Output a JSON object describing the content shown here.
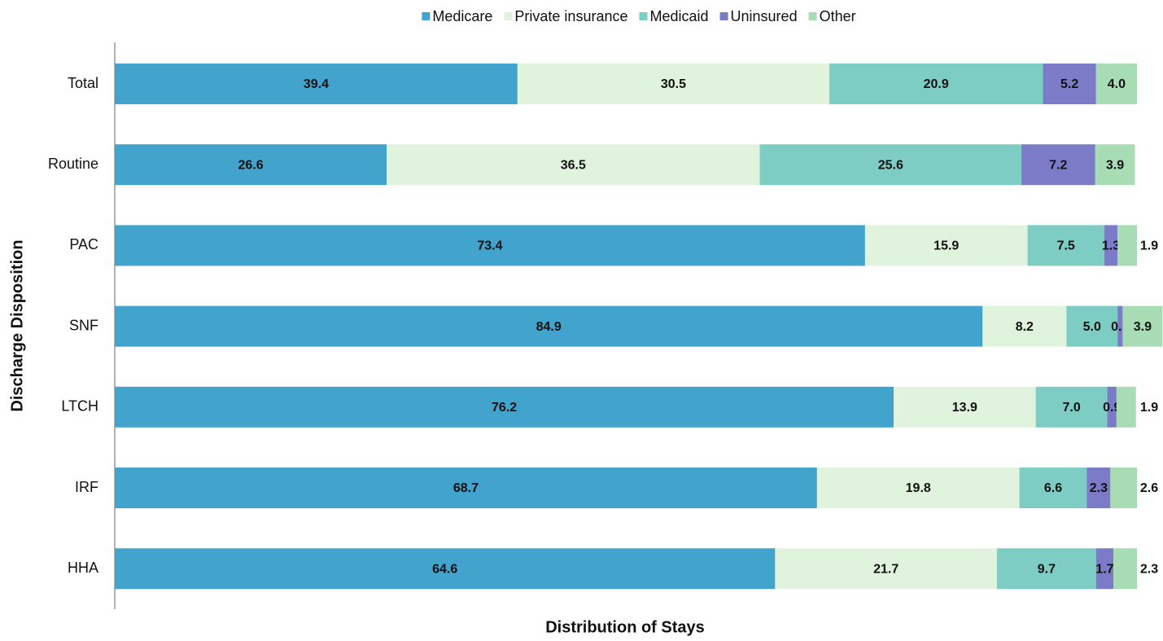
{
  "chart_data": {
    "type": "stacked-bar-horizontal",
    "x_label": "Distribution of Stays",
    "y_label": "Discharge Disposition",
    "categories": [
      "Total",
      "Routine",
      "PAC",
      "SNF",
      "LTCH",
      "IRF",
      "HHA"
    ],
    "xlim": [
      0,
      100
    ],
    "legend": "top",
    "series": [
      {
        "name": "Medicare",
        "color": "#42a3cc",
        "values": [
          39.4,
          26.6,
          73.4,
          84.9,
          76.2,
          68.7,
          64.6
        ],
        "value_labels": [
          "39.4",
          "26.6",
          "73.4",
          "84.9",
          "76.2",
          "68.7",
          "64.6"
        ]
      },
      {
        "name": "Private insurance",
        "color": "#e0f3dc",
        "values": [
          30.5,
          36.5,
          15.9,
          8.2,
          13.9,
          19.8,
          21.7
        ],
        "value_labels": [
          "30.5",
          "36.5",
          "15.9",
          "8.2",
          "13.9",
          "19.8",
          "21.7"
        ]
      },
      {
        "name": "Medicaid",
        "color": "#7dcdc4",
        "values": [
          20.9,
          25.6,
          7.5,
          5.0,
          7.0,
          6.6,
          9.7
        ],
        "value_labels": [
          "20.9",
          "25.6",
          "7.5",
          "5.0",
          "7.0",
          "6.6",
          "9.7"
        ]
      },
      {
        "name": "Uninsured",
        "color": "#7b7bc8",
        "values": [
          5.2,
          7.2,
          1.3,
          0.5,
          0.9,
          2.3,
          1.7
        ],
        "value_labels": [
          "5.2",
          "7.2",
          "1.3",
          "0.5",
          "0.9",
          "2.3",
          "1.7"
        ]
      },
      {
        "name": "Other",
        "color": "#a8dcb4",
        "values": [
          4.0,
          3.9,
          1.9,
          3.9,
          1.9,
          2.6,
          2.3
        ],
        "value_labels": [
          "4.0",
          "3.9",
          "1.9",
          "3.9",
          "1.9",
          "2.6",
          "2.3"
        ]
      }
    ]
  }
}
